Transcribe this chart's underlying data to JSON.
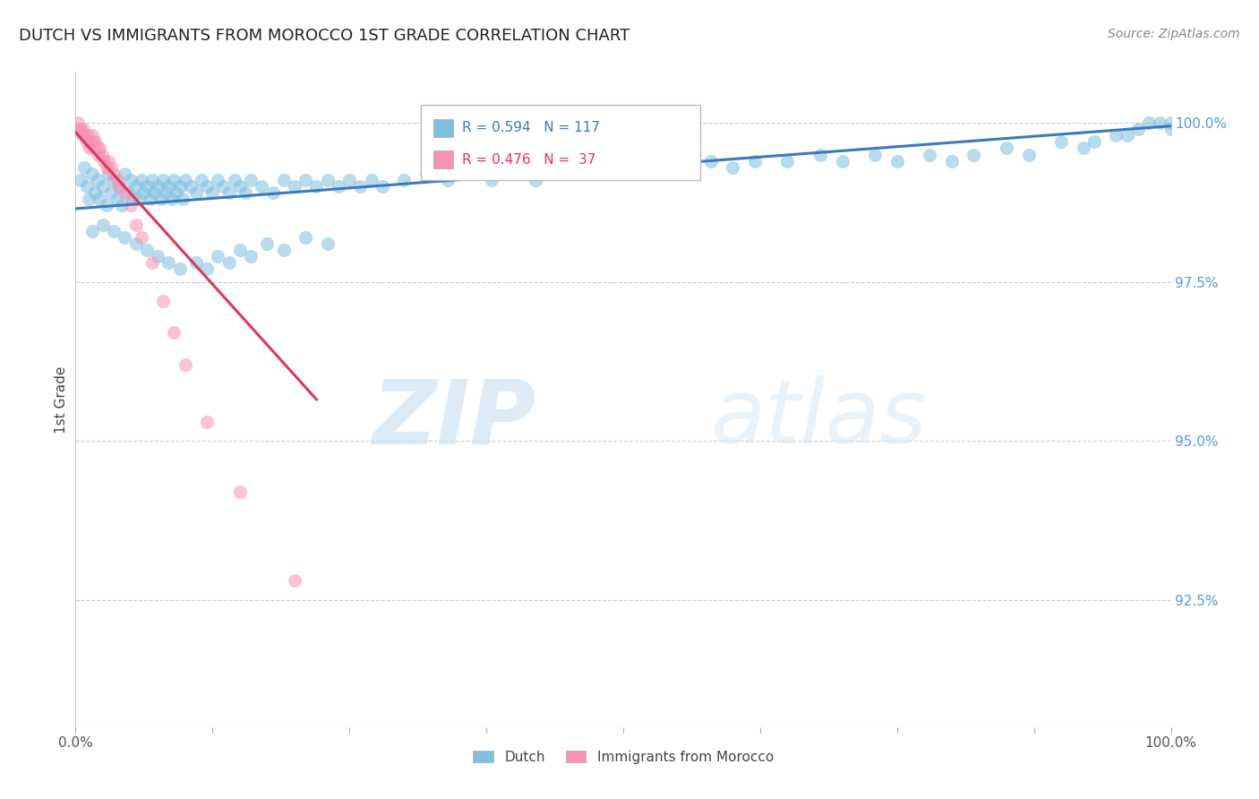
{
  "title": "DUTCH VS IMMIGRANTS FROM MOROCCO 1ST GRADE CORRELATION CHART",
  "source": "Source: ZipAtlas.com",
  "ylabel": "1st Grade",
  "ytick_labels": [
    "100.0%",
    "97.5%",
    "95.0%",
    "92.5%"
  ],
  "ytick_values": [
    1.0,
    0.975,
    0.95,
    0.925
  ],
  "xlim": [
    0.0,
    1.0
  ],
  "ylim": [
    0.905,
    1.008
  ],
  "legend_dutch": "Dutch",
  "legend_morocco": "Immigrants from Morocco",
  "r_dutch": 0.594,
  "n_dutch": 117,
  "r_morocco": 0.476,
  "n_morocco": 37,
  "dutch_color": "#7fbfdf",
  "morocco_color": "#f892b4",
  "trendline_dutch_color": "#3a7abf",
  "trendline_morocco_color": "#e0365a",
  "background_color": "#ffffff",
  "watermark_zip": "ZIP",
  "watermark_atlas": "atlas",
  "dutch_x": [
    0.005,
    0.008,
    0.01,
    0.012,
    0.015,
    0.018,
    0.02,
    0.022,
    0.025,
    0.028,
    0.03,
    0.032,
    0.035,
    0.038,
    0.04,
    0.042,
    0.045,
    0.048,
    0.05,
    0.052,
    0.055,
    0.058,
    0.06,
    0.062,
    0.065,
    0.068,
    0.07,
    0.072,
    0.075,
    0.078,
    0.08,
    0.082,
    0.085,
    0.088,
    0.09,
    0.092,
    0.095,
    0.098,
    0.1,
    0.105,
    0.11,
    0.115,
    0.12,
    0.125,
    0.13,
    0.135,
    0.14,
    0.145,
    0.15,
    0.155,
    0.16,
    0.17,
    0.18,
    0.19,
    0.2,
    0.21,
    0.22,
    0.23,
    0.24,
    0.25,
    0.26,
    0.27,
    0.28,
    0.3,
    0.32,
    0.34,
    0.36,
    0.38,
    0.4,
    0.42,
    0.45,
    0.48,
    0.5,
    0.52,
    0.55,
    0.58,
    0.6,
    0.62,
    0.65,
    0.68,
    0.7,
    0.73,
    0.75,
    0.78,
    0.8,
    0.82,
    0.85,
    0.87,
    0.9,
    0.92,
    0.93,
    0.95,
    0.96,
    0.97,
    0.98,
    0.99,
    1.0,
    1.0,
    0.015,
    0.025,
    0.035,
    0.045,
    0.055,
    0.065,
    0.075,
    0.085,
    0.095,
    0.11,
    0.12,
    0.13,
    0.14,
    0.15,
    0.16,
    0.175,
    0.19,
    0.21,
    0.23
  ],
  "dutch_y": [
    0.991,
    0.993,
    0.99,
    0.988,
    0.992,
    0.989,
    0.991,
    0.988,
    0.99,
    0.987,
    0.992,
    0.989,
    0.991,
    0.988,
    0.99,
    0.987,
    0.992,
    0.989,
    0.991,
    0.988,
    0.99,
    0.988,
    0.991,
    0.989,
    0.99,
    0.988,
    0.991,
    0.989,
    0.99,
    0.988,
    0.991,
    0.989,
    0.99,
    0.988,
    0.991,
    0.989,
    0.99,
    0.988,
    0.991,
    0.99,
    0.989,
    0.991,
    0.99,
    0.989,
    0.991,
    0.99,
    0.989,
    0.991,
    0.99,
    0.989,
    0.991,
    0.99,
    0.989,
    0.991,
    0.99,
    0.991,
    0.99,
    0.991,
    0.99,
    0.991,
    0.99,
    0.991,
    0.99,
    0.991,
    0.992,
    0.991,
    0.992,
    0.991,
    0.992,
    0.991,
    0.992,
    0.993,
    0.992,
    0.993,
    0.993,
    0.994,
    0.993,
    0.994,
    0.994,
    0.995,
    0.994,
    0.995,
    0.994,
    0.995,
    0.994,
    0.995,
    0.996,
    0.995,
    0.997,
    0.996,
    0.997,
    0.998,
    0.998,
    0.999,
    1.0,
    1.0,
    1.0,
    0.999,
    0.983,
    0.984,
    0.983,
    0.982,
    0.981,
    0.98,
    0.979,
    0.978,
    0.977,
    0.978,
    0.977,
    0.979,
    0.978,
    0.98,
    0.979,
    0.981,
    0.98,
    0.982,
    0.981
  ],
  "morocco_x": [
    0.002,
    0.004,
    0.005,
    0.006,
    0.007,
    0.008,
    0.009,
    0.01,
    0.011,
    0.012,
    0.013,
    0.015,
    0.016,
    0.017,
    0.018,
    0.02,
    0.021,
    0.022,
    0.024,
    0.026,
    0.028,
    0.03,
    0.032,
    0.035,
    0.038,
    0.04,
    0.045,
    0.05,
    0.055,
    0.06,
    0.07,
    0.08,
    0.09,
    0.1,
    0.12,
    0.15,
    0.2
  ],
  "morocco_y": [
    1.0,
    0.999,
    0.999,
    0.998,
    0.999,
    0.998,
    0.998,
    0.997,
    0.998,
    0.997,
    0.996,
    0.998,
    0.997,
    0.996,
    0.997,
    0.996,
    0.995,
    0.996,
    0.995,
    0.994,
    0.993,
    0.994,
    0.993,
    0.992,
    0.991,
    0.99,
    0.989,
    0.987,
    0.984,
    0.982,
    0.978,
    0.972,
    0.967,
    0.962,
    0.953,
    0.942,
    0.928
  ],
  "dutch_trendline_x0": 0.0,
  "dutch_trendline_y0": 0.9865,
  "dutch_trendline_x1": 1.0,
  "dutch_trendline_y1": 0.9995,
  "morocco_trendline_x0": 0.0,
  "morocco_trendline_y0": 0.9985,
  "morocco_trendline_x1": 0.22,
  "morocco_trendline_y1": 0.9565
}
